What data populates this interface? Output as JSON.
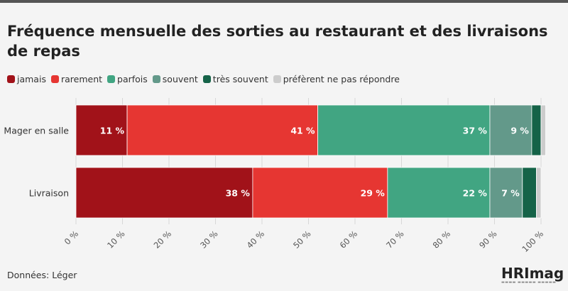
{
  "title": "Fréquence mensuelle des sorties au restaurant et des livraisons de repas",
  "source": "Données: Léger",
  "logo": {
    "text": "HRImag"
  },
  "chart_data": {
    "type": "bar",
    "orientation": "horizontal",
    "stacked": true,
    "categories": [
      "Mager en salle",
      "Livraison"
    ],
    "series": [
      {
        "name": "jamais",
        "color": "#a11219",
        "values": [
          11,
          38
        ]
      },
      {
        "name": "rarement",
        "color": "#e63632",
        "values": [
          41,
          29
        ]
      },
      {
        "name": "parfois",
        "color": "#41a582",
        "values": [
          37,
          22
        ]
      },
      {
        "name": "souvent",
        "color": "#63998a",
        "values": [
          9,
          7
        ]
      },
      {
        "name": "très souvent",
        "color": "#156348",
        "values": [
          2,
          3
        ]
      },
      {
        "name": "préfèrent ne pas répondre",
        "color": "#cccccc",
        "values": [
          1,
          1
        ]
      }
    ],
    "data_labels": [
      [
        "11 %",
        "41 %",
        "37 %",
        "9 %",
        "",
        ""
      ],
      [
        "38 %",
        "29 %",
        "22 %",
        "7 %",
        "",
        ""
      ]
    ],
    "x_ticks": [
      "0 %",
      "10 %",
      "20 %",
      "30 %",
      "40 %",
      "50 %",
      "60 %",
      "70 %",
      "80 %",
      "90 %",
      "100 %"
    ],
    "xlim": [
      0,
      100
    ],
    "legend_position": "top-left",
    "grid": "vertical"
  }
}
